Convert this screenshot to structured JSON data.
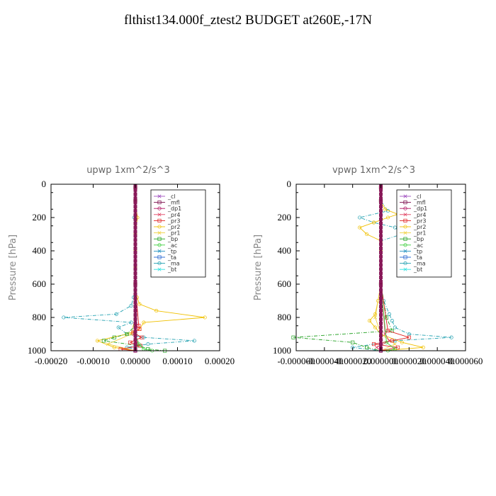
{
  "title": "flthist134.000f_ztest2  BUDGET at260E,-17N",
  "legend_entries": [
    "_cl",
    "_mfl",
    "_dp1",
    "_pr4",
    "_pr3",
    "_pr2",
    "_pr1",
    "_bp",
    "_ac",
    "_tp",
    "_ta",
    "_ma",
    "_bt"
  ],
  "series_colors": {
    "_cl": "#a050c0",
    "_mfl": "#7a0a4a",
    "_dp1": "#b01060",
    "_pr4": "#e04060",
    "_pr3": "#e02020",
    "_pr2": "#f0c000",
    "_pr1": "#f0d040",
    "_bp": "#20a020",
    "_ac": "#40d040",
    "_tp": "#2090c0",
    "_ta": "#2060d0",
    "_ma": "#20a0b0",
    "_bt": "#30e0e0"
  },
  "chart_data": [
    {
      "type": "line",
      "title": "upwp    1xm^2/s^3",
      "ylabel": "Pressure  [hPa]",
      "xlabel": "",
      "xlim": [
        -0.0002,
        0.0002
      ],
      "ylim": [
        1000,
        0
      ],
      "x_ticks": [
        "-0.00020",
        "-0.00010",
        "0.00000",
        "0.00010",
        "0.00020"
      ],
      "x_tick_values": [
        -0.0002,
        -0.0001,
        0,
        0.0001,
        0.0002
      ],
      "y_ticks": [
        "0",
        "200",
        "400",
        "600",
        "800",
        "1000"
      ],
      "y_tick_values": [
        0,
        200,
        400,
        600,
        800,
        1000
      ],
      "legend_position": "top-right",
      "series": [
        {
          "key": "_ma",
          "pressure": [
            20,
            100,
            200,
            300,
            400,
            500,
            600,
            680,
            730,
            780,
            800,
            830,
            860,
            900,
            920,
            940,
            960,
            980,
            990,
            1000
          ],
          "values": [
            0,
            0,
            -3e-06,
            0,
            0,
            0,
            0,
            -4e-06,
            -1e-05,
            -4.5e-05,
            -0.00017,
            -1e-05,
            -4e-05,
            -2e-05,
            2e-05,
            0.00014,
            3e-05,
            -2e-05,
            0,
            0
          ]
        },
        {
          "key": "_pr2",
          "pressure": [
            20,
            100,
            200,
            300,
            400,
            500,
            600,
            680,
            720,
            760,
            800,
            830,
            870,
            900,
            940,
            980,
            1000
          ],
          "values": [
            0,
            0,
            5e-06,
            0,
            0,
            0,
            0,
            4e-06,
            1e-05,
            5e-05,
            0.000165,
            2e-05,
            1e-05,
            -2e-05,
            -9e-05,
            -5e-05,
            0
          ]
        },
        {
          "key": "_pr1",
          "pressure": [
            20,
            100,
            200,
            300,
            600,
            800,
            900,
            960,
            1000
          ],
          "values": [
            0,
            0,
            3e-06,
            0,
            0,
            0,
            -1e-05,
            -6.5e-05,
            0
          ]
        },
        {
          "key": "_bp",
          "pressure": [
            20,
            100,
            600,
            850,
            900,
            920,
            940,
            970,
            990,
            1000
          ],
          "values": [
            0,
            0,
            0,
            0,
            -2e-05,
            -5e-05,
            -7.5e-05,
            1e-05,
            3e-05,
            7e-05
          ]
        },
        {
          "key": "_pr3",
          "pressure": [
            20,
            100,
            600,
            850,
            870,
            890,
            920,
            950,
            970,
            990,
            1000
          ],
          "values": [
            0,
            0,
            0,
            8e-06,
            1e-05,
            -5e-06,
            1.5e-05,
            -1.2e-05,
            1.2e-05,
            -3.5e-05,
            0
          ]
        },
        {
          "key": "_pr4",
          "pressure": [
            20,
            100,
            600,
            850,
            900,
            950,
            1000
          ],
          "values": [
            0,
            0,
            0,
            3e-06,
            -3e-06,
            4e-06,
            0
          ]
        },
        {
          "key": "_ac",
          "pressure": [
            20,
            100,
            600,
            900,
            960,
            990,
            1000
          ],
          "values": [
            0,
            0,
            0,
            0,
            8e-06,
            2e-05,
            4e-05
          ]
        },
        {
          "key": "_dp1",
          "pressure": [
            20,
            100,
            600,
            1000
          ],
          "values": [
            0,
            0,
            0,
            0
          ]
        },
        {
          "key": "_mfl",
          "pressure": [
            20,
            100,
            600,
            1000
          ],
          "values": [
            0,
            0,
            0,
            0
          ]
        },
        {
          "key": "_cl",
          "pressure": [
            20,
            100,
            600,
            1000
          ],
          "values": [
            0,
            0,
            0,
            0
          ]
        }
      ]
    },
    {
      "type": "line",
      "title": "vpwp    1xm^2/s^3",
      "ylabel": "Pressure  [hPa]",
      "xlabel": "",
      "xlim": [
        -6e-05,
        6e-05
      ],
      "ylim": [
        1000,
        0
      ],
      "x_ticks": [
        "-0.000060",
        "-0.000040",
        "-0.000020",
        "0.000000",
        "0.000020",
        "0.000040",
        "0.000060"
      ],
      "x_tick_values": [
        -6e-05,
        -4e-05,
        -2e-05,
        0,
        2e-05,
        4e-05,
        6e-05
      ],
      "y_ticks": [
        "0",
        "200",
        "400",
        "600",
        "800",
        "1000"
      ],
      "y_tick_values": [
        0,
        200,
        400,
        600,
        800,
        1000
      ],
      "legend_position": "top-right",
      "series": [
        {
          "key": "_ma",
          "pressure": [
            20,
            100,
            160,
            200,
            230,
            260,
            300,
            340,
            400,
            600,
            700,
            780,
            820,
            860,
            900,
            920,
            940,
            980,
            1000
          ],
          "values": [
            0,
            0,
            5e-06,
            -1.5e-05,
            -5e-06,
            1e-05,
            1.5e-05,
            0,
            0,
            0,
            2e-06,
            6e-06,
            8e-06,
            1e-05,
            2e-05,
            5e-05,
            1e-05,
            -2e-05,
            0
          ]
        },
        {
          "key": "_pr2",
          "pressure": [
            20,
            100,
            150,
            180,
            200,
            230,
            260,
            300,
            340,
            400,
            600,
            700,
            780,
            820,
            860,
            900,
            950,
            980,
            1000
          ],
          "values": [
            0,
            0,
            3e-06,
            1.2e-05,
            5e-06,
            -5e-06,
            -1.5e-05,
            -1e-05,
            0,
            0,
            0,
            -2e-06,
            -4e-06,
            -8e-06,
            -4e-06,
            0,
            1.5e-05,
            3e-05,
            0
          ]
        },
        {
          "key": "_pr1",
          "pressure": [
            20,
            100,
            300,
            600,
            800,
            900,
            960,
            1000
          ],
          "values": [
            0,
            0,
            0,
            0,
            -4e-06,
            0,
            1e-05,
            0
          ]
        },
        {
          "key": "_bp",
          "pressure": [
            20,
            100,
            600,
            800,
            880,
            920,
            950,
            980,
            1000
          ],
          "values": [
            0,
            0,
            0,
            4e-06,
            8e-06,
            -6.2e-05,
            -2e-05,
            -1e-05,
            0
          ]
        },
        {
          "key": "_pr3",
          "pressure": [
            20,
            100,
            600,
            880,
            920,
            940,
            960,
            980,
            1000
          ],
          "values": [
            0,
            0,
            0,
            5e-06,
            2e-05,
            8e-06,
            -5e-06,
            1.2e-05,
            0
          ]
        },
        {
          "key": "_pr4",
          "pressure": [
            20,
            100,
            600,
            900,
            940,
            980,
            1000
          ],
          "values": [
            0,
            0,
            0,
            3e-06,
            6e-06,
            -3e-06,
            0
          ]
        },
        {
          "key": "_ac",
          "pressure": [
            20,
            100,
            600,
            950,
            990,
            1000
          ],
          "values": [
            0,
            0,
            0,
            4e-06,
            1e-05,
            5e-06
          ]
        },
        {
          "key": "_dp1",
          "pressure": [
            20,
            100,
            600,
            1000
          ],
          "values": [
            0,
            0,
            0,
            0
          ]
        },
        {
          "key": "_mfl",
          "pressure": [
            20,
            100,
            600,
            1000
          ],
          "values": [
            0,
            0,
            0,
            0
          ]
        },
        {
          "key": "_cl",
          "pressure": [
            20,
            100,
            600,
            1000
          ],
          "values": [
            0,
            0,
            0,
            0
          ]
        }
      ]
    }
  ]
}
